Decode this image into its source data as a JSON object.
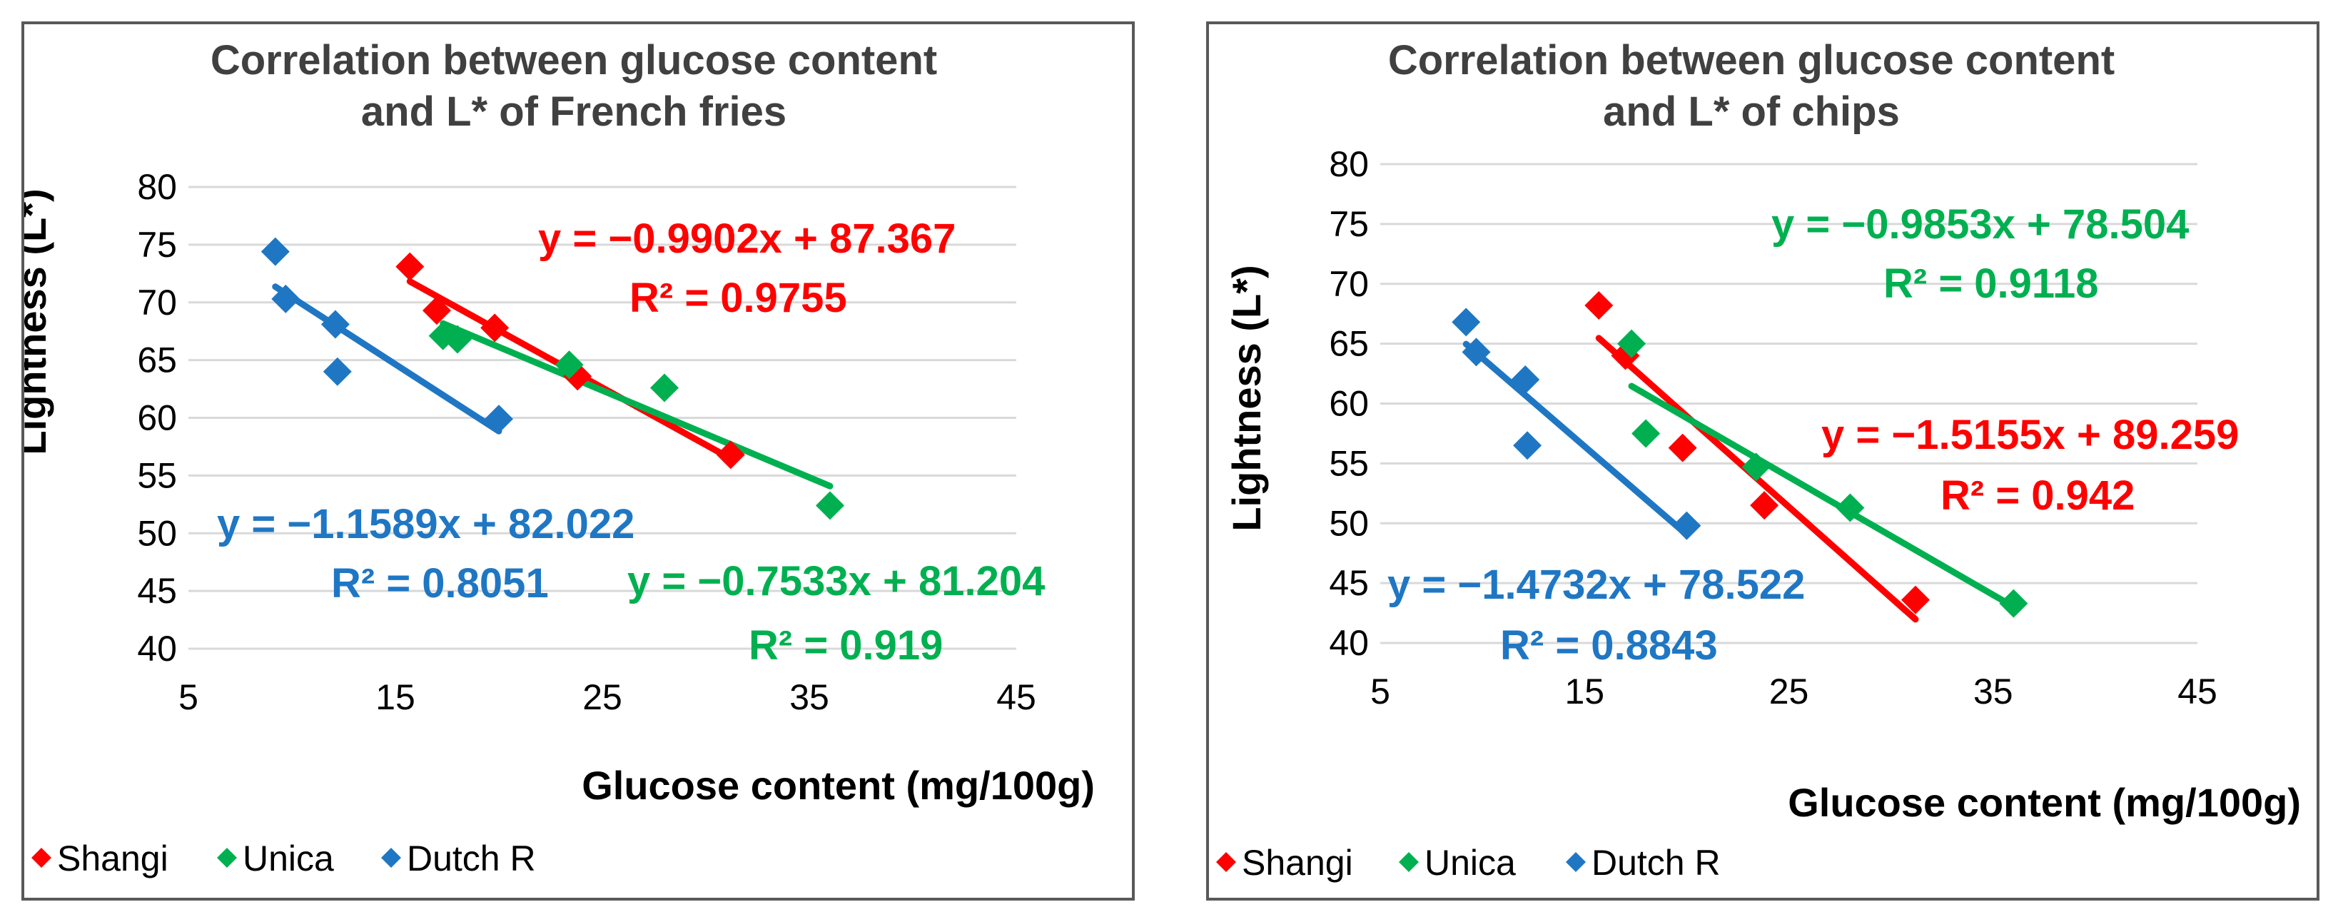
{
  "chart_data": [
    {
      "type": "scatter",
      "title_lines": [
        "Correlation between glucose content",
        "and L* of French fries"
      ],
      "xlabel": "Glucose content (mg/100g)",
      "ylabel": "Lightness  (L*)",
      "xlim": [
        5,
        45
      ],
      "ylim": [
        40,
        80
      ],
      "x_ticks": [
        "5",
        "15",
        "25",
        "35",
        "45"
      ],
      "y_ticks": [
        "40",
        "45",
        "50",
        "55",
        "60",
        "65",
        "70",
        "75",
        "80"
      ],
      "grid": true,
      "legend_position": "bottom-left",
      "series": [
        {
          "name": "Shangi",
          "color": "#ff0000",
          "points": [
            [
              15.7,
              73.1
            ],
            [
              17.0,
              69.3
            ],
            [
              19.8,
              67.8
            ],
            [
              23.8,
              63.6
            ],
            [
              31.2,
              56.8
            ]
          ],
          "trendline": {
            "x_range": [
              15.7,
              31.2
            ],
            "equation": "y = −0.9902x + 87.367",
            "r2": "R² = 0.9755"
          }
        },
        {
          "name": "Unica",
          "color": "#00b050",
          "points": [
            [
              17.3,
              67.1
            ],
            [
              18.0,
              66.8
            ],
            [
              23.4,
              64.6
            ],
            [
              28.0,
              62.6
            ],
            [
              36.0,
              52.4
            ]
          ],
          "trendline": {
            "x_range": [
              17.3,
              36.0
            ],
            "equation": "y = −0.7533x + 81.204",
            "r2": "R² = 0.919"
          }
        },
        {
          "name": "Dutch R",
          "color": "#1f77c4",
          "points": [
            [
              9.2,
              74.4
            ],
            [
              9.7,
              70.3
            ],
            [
              12.1,
              68.1
            ],
            [
              12.2,
              64.0
            ],
            [
              20.0,
              59.9
            ]
          ],
          "trendline": {
            "x_range": [
              9.2,
              20.0
            ],
            "equation": "y = −1.1589x + 82.022",
            "r2": "R² = 0.8051"
          }
        }
      ]
    },
    {
      "type": "scatter",
      "title_lines": [
        "Correlation between glucose content",
        "and L* of chips"
      ],
      "xlabel": "Glucose content (mg/100g)",
      "ylabel": "Lightness (L*)",
      "xlim": [
        5,
        45
      ],
      "ylim": [
        40,
        80
      ],
      "x_ticks": [
        "5",
        "15",
        "25",
        "35",
        "45"
      ],
      "y_ticks": [
        "40",
        "45",
        "50",
        "55",
        "60",
        "65",
        "70",
        "75",
        "80"
      ],
      "grid": true,
      "legend_position": "bottom-left",
      "series": [
        {
          "name": "Shangi",
          "color": "#ff0000",
          "points": [
            [
              15.7,
              68.2
            ],
            [
              17.0,
              64.0
            ],
            [
              19.8,
              56.3
            ],
            [
              23.8,
              51.5
            ],
            [
              31.2,
              43.6
            ]
          ],
          "trendline": {
            "x_range": [
              15.7,
              31.2
            ],
            "equation": "y = −1.5155x + 89.259",
            "r2": "R² = 0.942"
          }
        },
        {
          "name": "Unica",
          "color": "#00b050",
          "points": [
            [
              17.3,
              65.0
            ],
            [
              18.0,
              57.5
            ],
            [
              23.4,
              54.7
            ],
            [
              28.0,
              51.3
            ],
            [
              36.0,
              43.3
            ]
          ],
          "trendline": {
            "x_range": [
              17.3,
              36.0
            ],
            "equation": "y = −0.9853x + 78.504",
            "r2": "R² = 0.9118"
          }
        },
        {
          "name": "Dutch R",
          "color": "#1f77c4",
          "points": [
            [
              9.2,
              66.8
            ],
            [
              9.7,
              64.3
            ],
            [
              12.1,
              62.0
            ],
            [
              12.2,
              56.5
            ],
            [
              20.0,
              49.8
            ]
          ],
          "trendline": {
            "x_range": [
              9.2,
              20.0
            ],
            "equation": "y = −1.4732x + 78.522",
            "r2": "R² = 0.8843"
          }
        }
      ]
    }
  ]
}
